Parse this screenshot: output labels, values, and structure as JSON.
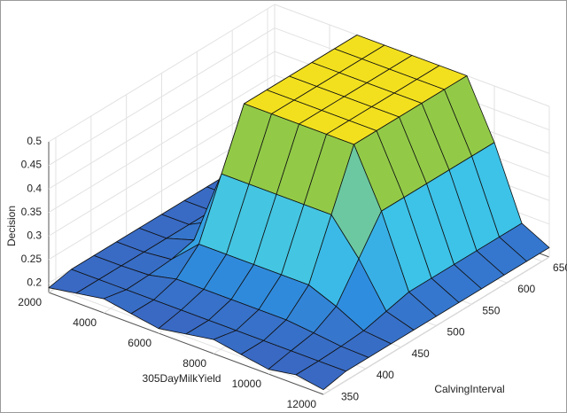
{
  "chart_data": {
    "type": "surface",
    "xlabel": "305DayMilkYield",
    "ylabel": "CalvingInterval",
    "zlabel": "Decision",
    "x": [
      2000,
      3000,
      4000,
      5000,
      6000,
      7000,
      8000,
      9000,
      10000,
      11000,
      12000
    ],
    "y": [
      340,
      372,
      404,
      436,
      468,
      500,
      532,
      564,
      596,
      628,
      660
    ],
    "z": [
      [
        0.19,
        0.2,
        0.21,
        0.2,
        0.19,
        0.2,
        0.21,
        0.2,
        0.19,
        0.2,
        0.19
      ],
      [
        0.2,
        0.2,
        0.2,
        0.2,
        0.2,
        0.2,
        0.2,
        0.2,
        0.2,
        0.2,
        0.2
      ],
      [
        0.2,
        0.2,
        0.202,
        0.215,
        0.215,
        0.215,
        0.215,
        0.215,
        0.209,
        0.202,
        0.2
      ],
      [
        0.2,
        0.2,
        0.206,
        0.26,
        0.26,
        0.26,
        0.26,
        0.26,
        0.236,
        0.206,
        0.2
      ],
      [
        0.2,
        0.2,
        0.218,
        0.38,
        0.38,
        0.38,
        0.38,
        0.38,
        0.308,
        0.218,
        0.2
      ],
      [
        0.2,
        0.2,
        0.23,
        0.5,
        0.5,
        0.5,
        0.5,
        0.5,
        0.38,
        0.23,
        0.2
      ],
      [
        0.2,
        0.2,
        0.23,
        0.5,
        0.5,
        0.5,
        0.5,
        0.5,
        0.38,
        0.23,
        0.2
      ],
      [
        0.2,
        0.2,
        0.23,
        0.5,
        0.5,
        0.5,
        0.5,
        0.5,
        0.38,
        0.23,
        0.2
      ],
      [
        0.2,
        0.2,
        0.23,
        0.5,
        0.5,
        0.5,
        0.5,
        0.5,
        0.38,
        0.23,
        0.2
      ],
      [
        0.2,
        0.2,
        0.23,
        0.5,
        0.5,
        0.5,
        0.5,
        0.5,
        0.38,
        0.23,
        0.2
      ],
      [
        0.2,
        0.2,
        0.23,
        0.5,
        0.5,
        0.5,
        0.5,
        0.5,
        0.38,
        0.23,
        0.2
      ]
    ],
    "xlim": [
      2000,
      12000
    ],
    "ylim": [
      340,
      660
    ],
    "zlim": [
      0.18,
      0.5
    ],
    "xticks": [
      2000,
      4000,
      6000,
      8000,
      10000,
      12000
    ],
    "yticks": [
      350,
      400,
      450,
      500,
      550,
      600,
      650
    ],
    "zticks": [
      0.2,
      0.25,
      0.3,
      0.35,
      0.4,
      0.45,
      0.5
    ],
    "grid": true,
    "colormap": [
      "#3d5bb8",
      "#2f8fe0",
      "#3ec4e8",
      "#5cc8c8",
      "#8cc84a",
      "#f2e01e"
    ]
  }
}
